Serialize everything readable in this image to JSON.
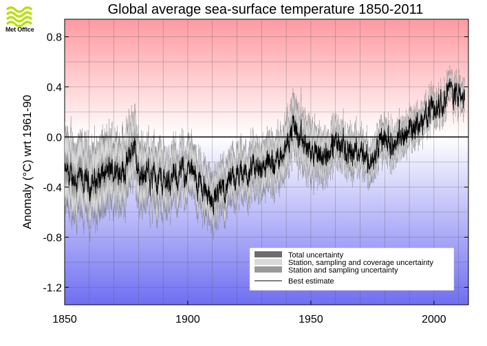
{
  "logo": {
    "text": "Met Office",
    "icon": "met-office-logo-icon",
    "color": "#b8e000"
  },
  "chart_data": {
    "type": "line",
    "title": "Global average sea-surface temperature 1850-2011",
    "xlabel": "",
    "ylabel": "Anomaly (°C) wrt 1961-90",
    "xlim": [
      1850,
      2014
    ],
    "ylim": [
      -1.34,
      0.94
    ],
    "x_ticks": [
      1850,
      1900,
      1950,
      2000
    ],
    "y_ticks": [
      -1.2,
      -0.8,
      -0.4,
      0.0,
      0.4,
      0.8
    ],
    "y_tick_labels": [
      "-1.2",
      "-0.8",
      "-0.4",
      "0.0",
      "0.4",
      "0.8"
    ],
    "x_tick_labels": [
      "1850",
      "1900",
      "1950",
      "2000"
    ],
    "grid": true,
    "legend_position": "bottom-right",
    "legend": [
      {
        "label": "Total uncertainty",
        "color": "#6e6e6e",
        "kind": "band"
      },
      {
        "label": "Station, sampling and coverage uncertainty",
        "color": "#d9d9d9",
        "kind": "band"
      },
      {
        "label": "Station and sampling uncertainty",
        "color": "#9a9a9a",
        "kind": "band"
      },
      {
        "label": "Best estimate",
        "color": "#000000",
        "kind": "line"
      }
    ],
    "best_estimate": {
      "x": [
        1850,
        1855,
        1860,
        1865,
        1870,
        1875,
        1878,
        1880,
        1885,
        1890,
        1895,
        1900,
        1905,
        1910,
        1915,
        1920,
        1925,
        1930,
        1935,
        1940,
        1943,
        1945,
        1950,
        1955,
        1960,
        1965,
        1970,
        1975,
        1980,
        1985,
        1990,
        1995,
        1998,
        2000,
        2005,
        2010,
        2011
      ],
      "y": [
        -0.3,
        -0.34,
        -0.38,
        -0.32,
        -0.27,
        -0.24,
        -0.06,
        -0.3,
        -0.28,
        -0.35,
        -0.33,
        -0.25,
        -0.38,
        -0.5,
        -0.4,
        -0.33,
        -0.3,
        -0.23,
        -0.22,
        -0.05,
        0.1,
        -0.02,
        -0.12,
        -0.16,
        -0.05,
        -0.12,
        -0.08,
        -0.22,
        0.0,
        -0.05,
        0.08,
        0.1,
        0.25,
        0.2,
        0.38,
        0.34,
        0.3
      ]
    },
    "total_uncertainty_halfwidth": {
      "x": [
        1850,
        1880,
        1900,
        1920,
        1940,
        1946,
        1960,
        1980,
        2000,
        2011
      ],
      "y": [
        0.3,
        0.25,
        0.2,
        0.18,
        0.2,
        0.22,
        0.15,
        0.13,
        0.1,
        0.1
      ]
    },
    "background": {
      "top_color": "#ff9aa0",
      "zero_color": "#ffffff",
      "bottom_color": "#6f6ff2"
    }
  }
}
